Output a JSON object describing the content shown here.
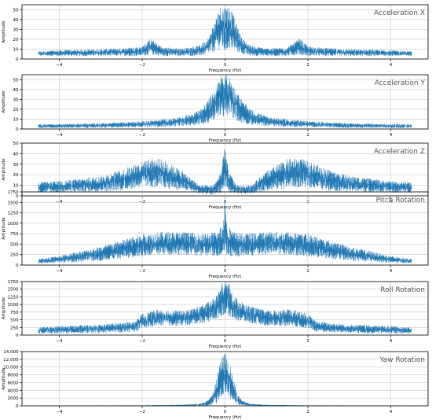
{
  "chart_data": [
    {
      "type": "line",
      "title": "Acceleration X",
      "xlabel": "Frequency (Hz)",
      "ylabel": "Amplitude",
      "xlim": [
        -4.9,
        4.9
      ],
      "ylim": [
        0,
        55
      ],
      "xticks": [
        -4,
        -2,
        0,
        2,
        4
      ],
      "xticklabels": [
        "−4",
        "−2",
        "0",
        "2",
        "4"
      ],
      "yticks": [
        0,
        10,
        20,
        30,
        40,
        50
      ],
      "yticklabels": [
        "0",
        "10",
        "20",
        "30",
        "40",
        "50"
      ],
      "grid": true,
      "color": "#1f77b4",
      "envelope": {
        "x": [
          -4.5,
          -4.0,
          -3.0,
          -2.5,
          -2.0,
          -1.8,
          -1.5,
          -1.0,
          -0.6,
          -0.4,
          -0.2,
          -0.1,
          0.0,
          0.1,
          0.2,
          0.4,
          0.6,
          1.0,
          1.5,
          1.8,
          2.0,
          2.5,
          3.0,
          4.0,
          4.5
        ],
        "y_low": [
          3,
          3,
          3,
          3,
          3,
          4,
          3,
          3,
          3,
          5,
          8,
          10,
          5,
          10,
          8,
          5,
          3,
          3,
          3,
          4,
          3,
          3,
          3,
          3,
          3
        ],
        "y_high": [
          8,
          9,
          10,
          11,
          13,
          21,
          12,
          11,
          14,
          22,
          45,
          55,
          55,
          55,
          45,
          22,
          14,
          11,
          12,
          21,
          13,
          11,
          10,
          9,
          8
        ]
      }
    },
    {
      "type": "line",
      "title": "Acceleration Y",
      "xlabel": "Frequency (Hz)",
      "ylabel": "Amplitude",
      "xlim": [
        -4.9,
        4.9
      ],
      "ylim": [
        0,
        55
      ],
      "xticks": [
        -4,
        -2,
        0,
        2,
        4
      ],
      "xticklabels": [
        "−4",
        "−2",
        "0",
        "2",
        "4"
      ],
      "yticks": [
        0,
        10,
        20,
        30,
        40,
        50
      ],
      "yticklabels": [
        "0",
        "10",
        "20",
        "30",
        "40",
        "50"
      ],
      "grid": true,
      "color": "#1f77b4",
      "envelope": {
        "x": [
          -4.5,
          -4.0,
          -3.0,
          -2.0,
          -1.5,
          -1.0,
          -0.6,
          -0.4,
          -0.2,
          -0.1,
          0.0,
          0.1,
          0.2,
          0.4,
          0.6,
          1.0,
          1.5,
          2.0,
          3.0,
          4.0,
          4.5
        ],
        "y_low": [
          1,
          1,
          1,
          2,
          2,
          3,
          4,
          6,
          10,
          15,
          8,
          15,
          10,
          6,
          4,
          3,
          2,
          2,
          1,
          1,
          1
        ],
        "y_high": [
          5,
          5,
          6,
          8,
          10,
          13,
          20,
          30,
          45,
          55,
          55,
          55,
          45,
          30,
          20,
          13,
          10,
          8,
          6,
          5,
          5
        ]
      }
    },
    {
      "type": "line",
      "title": "Acceleration Z",
      "xlabel": "Frequency (Hz)",
      "ylabel": "Amplitude",
      "xlim": [
        -4.9,
        4.9
      ],
      "ylim": [
        0,
        50
      ],
      "xticks": [
        -4,
        -2,
        0,
        2,
        4
      ],
      "xticklabels": [
        "−4",
        "−2",
        "0",
        "2",
        "4"
      ],
      "yticks": [
        0,
        10,
        20,
        30,
        40,
        50
      ],
      "yticklabels": [
        "0",
        "10",
        "20",
        "30",
        "40",
        "50"
      ],
      "grid": true,
      "color": "#1f77b4",
      "envelope": {
        "x": [
          -4.5,
          -4.0,
          -3.0,
          -2.5,
          -2.0,
          -1.8,
          -1.5,
          -1.0,
          -0.6,
          -0.3,
          -0.1,
          0.0,
          0.1,
          0.3,
          0.6,
          1.0,
          1.5,
          1.8,
          2.0,
          2.5,
          3.0,
          4.0,
          4.5
        ],
        "y_low": [
          3,
          3,
          4,
          5,
          8,
          8,
          7,
          5,
          2,
          1,
          3,
          5,
          3,
          1,
          2,
          5,
          7,
          8,
          8,
          5,
          4,
          3,
          3
        ],
        "y_high": [
          13,
          14,
          19,
          25,
          33,
          36,
          35,
          23,
          10,
          10,
          22,
          48,
          22,
          10,
          10,
          23,
          35,
          36,
          33,
          25,
          19,
          14,
          13
        ]
      }
    },
    {
      "type": "line",
      "title": "Pitch Rotation",
      "xlabel": "Frequency (Hz)",
      "ylabel": "Amplitude",
      "xlim": [
        -4.9,
        4.9
      ],
      "ylim": [
        0,
        1750
      ],
      "xticks": [
        -4,
        -2,
        0,
        2,
        4
      ],
      "xticklabels": [
        "−4",
        "−2",
        "0",
        "2",
        "4"
      ],
      "yticks": [
        0,
        250,
        500,
        750,
        1000,
        1250,
        1500,
        1750
      ],
      "yticklabels": [
        "0",
        "250",
        "500",
        "750",
        "1000",
        "1250",
        "1500",
        "1750"
      ],
      "grid": true,
      "color": "#1f77b4",
      "envelope": {
        "x": [
          -4.5,
          -4.0,
          -3.0,
          -2.0,
          -1.5,
          -1.0,
          -0.5,
          -0.2,
          -0.05,
          0.0,
          0.05,
          0.2,
          0.5,
          1.0,
          1.5,
          2.0,
          3.0,
          4.0,
          4.5
        ],
        "y_low": [
          40,
          50,
          100,
          200,
          250,
          250,
          200,
          200,
          200,
          300,
          200,
          200,
          200,
          250,
          250,
          200,
          100,
          50,
          40
        ],
        "y_high": [
          150,
          220,
          450,
          750,
          800,
          800,
          750,
          800,
          1000,
          1700,
          1000,
          800,
          750,
          800,
          800,
          750,
          450,
          220,
          150
        ]
      }
    },
    {
      "type": "line",
      "title": "Roll Rotation",
      "xlabel": "Frequency (Hz)",
      "ylabel": "Amplitude",
      "xlim": [
        -4.9,
        4.9
      ],
      "ylim": [
        0,
        1750
      ],
      "xticks": [
        -4,
        -2,
        0,
        2,
        4
      ],
      "xticklabels": [
        "−4",
        "−2",
        "0",
        "2",
        "4"
      ],
      "yticks": [
        0,
        250,
        500,
        750,
        1000,
        1250,
        1500,
        1750
      ],
      "yticklabels": [
        "0",
        "250",
        "500",
        "750",
        "1000",
        "1250",
        "1500",
        "1750"
      ],
      "grid": true,
      "color": "#1f77b4",
      "envelope": {
        "x": [
          -4.5,
          -4.0,
          -3.0,
          -2.2,
          -2.0,
          -1.6,
          -1.0,
          -0.5,
          -0.2,
          -0.1,
          0.0,
          0.1,
          0.2,
          0.5,
          1.0,
          1.6,
          2.0,
          2.2,
          3.0,
          4.0,
          4.5
        ],
        "y_low": [
          50,
          50,
          60,
          100,
          200,
          300,
          300,
          400,
          500,
          600,
          700,
          600,
          500,
          400,
          300,
          300,
          200,
          100,
          60,
          50,
          50
        ],
        "y_high": [
          250,
          300,
          350,
          450,
          700,
          850,
          800,
          1000,
          1300,
          1700,
          1750,
          1700,
          1300,
          1000,
          800,
          850,
          700,
          450,
          350,
          300,
          250
        ]
      }
    },
    {
      "type": "line",
      "title": "Yaw Rotation",
      "xlabel": "Frequency (Hz)",
      "ylabel": "Amplitude",
      "xlim": [
        -4.9,
        4.9
      ],
      "ylim": [
        0,
        14000
      ],
      "xticks": [
        -4,
        -2,
        0,
        2,
        4
      ],
      "xticklabels": [
        "−4",
        "−2",
        "0",
        "2",
        "4"
      ],
      "yticks": [
        0,
        2000,
        4000,
        6000,
        8000,
        10000,
        12000,
        14000
      ],
      "yticklabels": [
        "0",
        "2000",
        "4000",
        "6000",
        "8000",
        "10,000",
        "12,000",
        "14,000"
      ],
      "grid": true,
      "color": "#1f77b4",
      "envelope": {
        "x": [
          -4.5,
          -2.0,
          -1.0,
          -0.6,
          -0.4,
          -0.3,
          -0.2,
          -0.1,
          0.0,
          0.1,
          0.2,
          0.3,
          0.4,
          0.6,
          1.0,
          2.0,
          4.5
        ],
        "y_low": [
          0,
          0,
          0,
          0,
          50,
          150,
          500,
          2000,
          3000,
          2000,
          500,
          150,
          50,
          0,
          0,
          0,
          0
        ],
        "y_high": [
          80,
          150,
          300,
          600,
          1500,
          3000,
          7000,
          12000,
          13800,
          12000,
          7000,
          3000,
          1500,
          600,
          300,
          150,
          80
        ]
      }
    }
  ]
}
